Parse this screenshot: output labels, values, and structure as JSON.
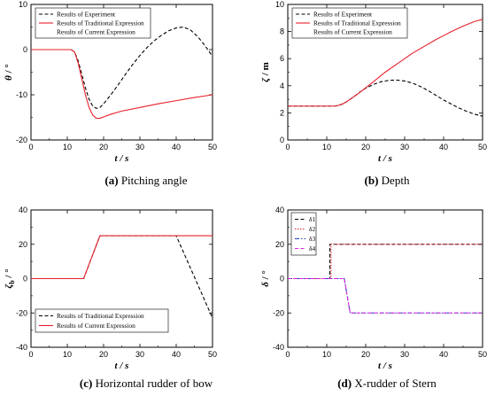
{
  "captions": [
    {
      "label": "(a)",
      "text": "Pitching angle"
    },
    {
      "label": "(b)",
      "text": "Depth"
    },
    {
      "label": "(c)",
      "text": "Horizontal rudder of bow"
    },
    {
      "label": "(d)",
      "text": "X-rudder of Stern"
    }
  ],
  "chart_data": [
    {
      "type": "line",
      "xlabel": "t / s",
      "ylabel": "θ / °",
      "xlim": [
        0,
        50
      ],
      "ylim": [
        -20,
        10
      ],
      "xticks": [
        0,
        10,
        20,
        30,
        40,
        50
      ],
      "yticks": [
        -20,
        -10,
        0,
        10
      ],
      "legend_position": "top-left",
      "series": [
        {
          "name": "Results of Experiment",
          "style": "dashed",
          "color": "#000000",
          "x": [
            0,
            10,
            11,
            12,
            13,
            14,
            15,
            16,
            17,
            18,
            19,
            20,
            22,
            24,
            26,
            28,
            30,
            32,
            34,
            36,
            38,
            40,
            42,
            44,
            46,
            48,
            50
          ],
          "y": [
            0,
            0,
            0,
            -0.5,
            -2.5,
            -5.5,
            -8.5,
            -11,
            -12.5,
            -13,
            -12.8,
            -12,
            -10,
            -7.8,
            -5.5,
            -3.3,
            -1.3,
            0.5,
            2,
            3.2,
            4.2,
            4.8,
            5,
            4.3,
            2.8,
            0.8,
            -1.5
          ]
        },
        {
          "name": "Results of Traditional Expression",
          "style": "solid",
          "color": "#e8202a",
          "x": [
            0,
            10,
            11,
            12,
            13,
            14,
            15,
            16,
            17,
            18,
            19,
            20,
            22,
            25,
            30,
            35,
            40,
            45,
            50
          ],
          "y": [
            0,
            0,
            0,
            -0.5,
            -3,
            -6.5,
            -10,
            -12.8,
            -14.5,
            -15.2,
            -15.2,
            -14.9,
            -14.3,
            -13.6,
            -12.8,
            -12,
            -11.3,
            -10.6,
            -10
          ]
        },
        {
          "name": "Results of Current Expression",
          "style": "solid",
          "color": "#1f3fbf",
          "x": [],
          "y": []
        }
      ]
    },
    {
      "type": "line",
      "xlabel": "t / s",
      "ylabel": "ζ / m",
      "xlim": [
        0,
        50
      ],
      "ylim": [
        0,
        10
      ],
      "xticks": [
        0,
        10,
        20,
        30,
        40,
        50
      ],
      "yticks": [
        0,
        2,
        4,
        6,
        8,
        10
      ],
      "legend_position": "top-left",
      "series": [
        {
          "name": "Results of Experiment",
          "style": "dashed",
          "color": "#000000",
          "x": [
            0,
            12,
            13,
            14,
            15,
            16,
            17,
            18,
            19,
            20,
            22,
            24,
            26,
            28,
            30,
            32,
            34,
            36,
            38,
            40,
            42,
            44,
            46,
            48,
            50
          ],
          "y": [
            2.5,
            2.5,
            2.55,
            2.65,
            2.8,
            3.0,
            3.2,
            3.42,
            3.63,
            3.82,
            4.1,
            4.3,
            4.4,
            4.42,
            4.35,
            4.2,
            3.95,
            3.65,
            3.3,
            2.95,
            2.65,
            2.35,
            2.1,
            1.9,
            1.75
          ]
        },
        {
          "name": "Results of Traditional Expression",
          "style": "solid",
          "color": "#e8202a",
          "x": [
            0,
            12,
            13,
            14,
            15,
            16,
            17,
            18,
            20,
            22,
            25,
            28,
            30,
            32,
            35,
            38,
            40,
            42,
            45,
            48,
            50
          ],
          "y": [
            2.5,
            2.5,
            2.55,
            2.65,
            2.8,
            3.0,
            3.2,
            3.4,
            3.85,
            4.3,
            5.0,
            5.6,
            6.0,
            6.4,
            6.9,
            7.4,
            7.7,
            8.0,
            8.4,
            8.75,
            8.9
          ]
        },
        {
          "name": "Results of Current Expression",
          "style": "solid",
          "color": "#1f3fbf",
          "x": [],
          "y": []
        }
      ]
    },
    {
      "type": "line",
      "xlabel": "t / s",
      "ylabel": "ζ_b / °",
      "xlim": [
        0,
        50
      ],
      "ylim": [
        -40,
        40
      ],
      "xticks": [
        0,
        10,
        20,
        30,
        40,
        50
      ],
      "yticks": [
        -40,
        -20,
        0,
        20,
        40
      ],
      "legend_position": "bottom-left",
      "series": [
        {
          "name": "Results of Traditional Expression",
          "style": "dashed",
          "color": "#000000",
          "x": [
            0,
            14.5,
            19,
            40,
            50
          ],
          "y": [
            0,
            0,
            25,
            25,
            -23
          ]
        },
        {
          "name": "Results of Current Expression",
          "style": "solid",
          "color": "#e8202a",
          "x": [
            0,
            14.5,
            19,
            50
          ],
          "y": [
            0,
            0,
            25,
            25
          ]
        }
      ]
    },
    {
      "type": "line",
      "xlabel": "t / s",
      "ylabel": "δ / °",
      "xlim": [
        0,
        50
      ],
      "ylim": [
        -40,
        40
      ],
      "xticks": [
        0,
        10,
        20,
        30,
        40,
        50
      ],
      "yticks": [
        -40,
        -20,
        0,
        20,
        40
      ],
      "legend_position": "top-left",
      "series": [
        {
          "name": "δ1",
          "style": "dashed",
          "color": "#000000",
          "x": [
            0,
            10.8,
            10.8,
            50
          ],
          "y": [
            0,
            0,
            20,
            20
          ]
        },
        {
          "name": "δ2",
          "style": "dotted",
          "color": "#e8202a",
          "x": [
            0,
            11.1,
            11.1,
            50
          ],
          "y": [
            0,
            0,
            20,
            20
          ]
        },
        {
          "name": "δ3",
          "style": "dashdot",
          "color": "#1f3fbf",
          "x": [
            0,
            14.5,
            16,
            50
          ],
          "y": [
            0,
            0,
            -20,
            -20
          ]
        },
        {
          "name": "δ4",
          "style": "dashed",
          "color": "#e020e0",
          "x": [
            0,
            14.5,
            16,
            50
          ],
          "y": [
            0,
            0,
            -20,
            -20
          ]
        }
      ]
    }
  ]
}
